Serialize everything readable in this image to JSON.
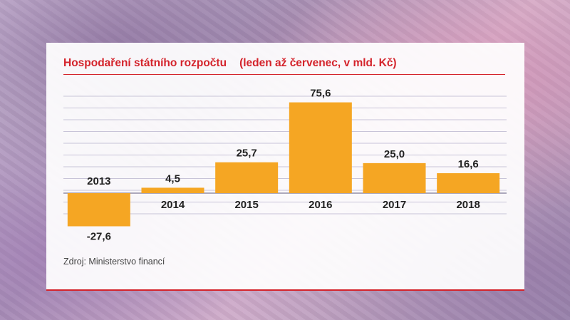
{
  "header": {
    "title": "Hospodaření státního rozpočtu",
    "subtitle": "(leden až červenec, v mld. Kč)"
  },
  "source": "Zdroj: Ministerstvo financí",
  "colors": {
    "bar": "#f5a623",
    "title": "#d4232b",
    "grid": "#c8c4d8"
  },
  "chart_data": {
    "type": "bar",
    "title": "Hospodaření státního rozpočtu",
    "subtitle": "(leden až červenec, v mld. Kč)",
    "categories": [
      "2013",
      "2014",
      "2015",
      "2016",
      "2017",
      "2018"
    ],
    "values": [
      -27.6,
      4.5,
      25.7,
      75.6,
      25.0,
      16.6
    ],
    "value_labels": [
      "-27,6",
      "4,5",
      "25,7",
      "75,6",
      "25,0",
      "16,6"
    ],
    "ylim": [
      -30,
      80
    ],
    "grid": true,
    "legend": "none"
  }
}
